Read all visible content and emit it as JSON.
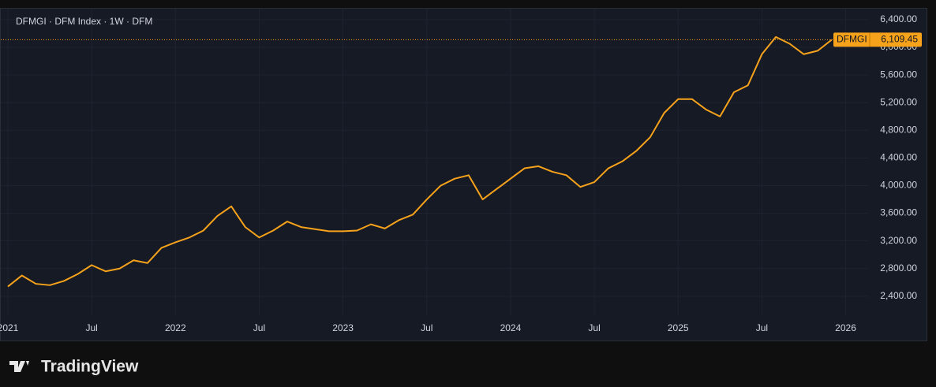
{
  "chart_data": {
    "type": "line",
    "title": "DFMGI · DFM Index · 1W · DFM",
    "brand": "TradingView",
    "x": [
      "2021-01",
      "2021-02",
      "2021-03",
      "2021-04",
      "2021-05",
      "2021-06",
      "2021-07",
      "2021-08",
      "2021-09",
      "2021-10",
      "2021-11",
      "2021-12",
      "2022-01",
      "2022-02",
      "2022-03",
      "2022-04",
      "2022-05",
      "2022-06",
      "2022-07",
      "2022-08",
      "2022-09",
      "2022-10",
      "2022-11",
      "2022-12",
      "2023-01",
      "2023-02",
      "2023-03",
      "2023-04",
      "2023-05",
      "2023-06",
      "2023-07",
      "2023-08",
      "2023-09",
      "2023-10",
      "2023-11",
      "2023-12",
      "2024-01",
      "2024-02",
      "2024-03",
      "2024-04",
      "2024-05",
      "2024-06",
      "2024-07",
      "2024-08",
      "2024-09",
      "2024-10",
      "2024-11",
      "2024-12",
      "2025-01",
      "2025-02",
      "2025-03",
      "2025-04",
      "2025-05",
      "2025-06",
      "2025-07",
      "2025-08",
      "2025-09",
      "2025-10",
      "2025-11",
      "2025-12"
    ],
    "series": [
      {
        "name": "DFMGI",
        "color": "#f7a21b",
        "last_label": "6,109.45",
        "values": [
          2540,
          2700,
          2580,
          2560,
          2620,
          2720,
          2850,
          2760,
          2800,
          2920,
          2880,
          3100,
          3180,
          3250,
          3350,
          3560,
          3700,
          3400,
          3250,
          3350,
          3480,
          3400,
          3370,
          3340,
          3340,
          3350,
          3440,
          3380,
          3500,
          3580,
          3800,
          4000,
          4100,
          4150,
          3800,
          3950,
          4100,
          4250,
          4280,
          4200,
          4150,
          3980,
          4050,
          4250,
          4350,
          4500,
          4700,
          5050,
          5250,
          5250,
          5100,
          5000,
          5350,
          5450,
          5900,
          6150,
          6050,
          5900,
          5950,
          6109.45
        ]
      }
    ],
    "xlim": [
      "2020-12",
      "2026-06"
    ],
    "xticks": [
      {
        "value": "2021-01",
        "label": "2021"
      },
      {
        "value": "2021-07",
        "label": "Jul"
      },
      {
        "value": "2022-01",
        "label": "2022"
      },
      {
        "value": "2022-07",
        "label": "Jul"
      },
      {
        "value": "2023-01",
        "label": "2023"
      },
      {
        "value": "2023-07",
        "label": "Jul"
      },
      {
        "value": "2024-01",
        "label": "2024"
      },
      {
        "value": "2024-07",
        "label": "Jul"
      },
      {
        "value": "2025-01",
        "label": "2025"
      },
      {
        "value": "2025-07",
        "label": "Jul"
      },
      {
        "value": "2026-01",
        "label": "2026"
      }
    ],
    "ylim": [
      1760,
      6570
    ],
    "yticks": [
      {
        "value": 2400,
        "label": "2,400.00"
      },
      {
        "value": 2800,
        "label": "2,800.00"
      },
      {
        "value": 3200,
        "label": "3,200.00"
      },
      {
        "value": 3600,
        "label": "3,600.00"
      },
      {
        "value": 4000,
        "label": "4,000.00"
      },
      {
        "value": 4400,
        "label": "4,400.00"
      },
      {
        "value": 4800,
        "label": "4,800.00"
      },
      {
        "value": 5200,
        "label": "5,200.00"
      },
      {
        "value": 5600,
        "label": "5,600.00"
      },
      {
        "value": 6000,
        "label": "6,000.00"
      },
      {
        "value": 6400,
        "label": "6,400.00"
      }
    ]
  }
}
